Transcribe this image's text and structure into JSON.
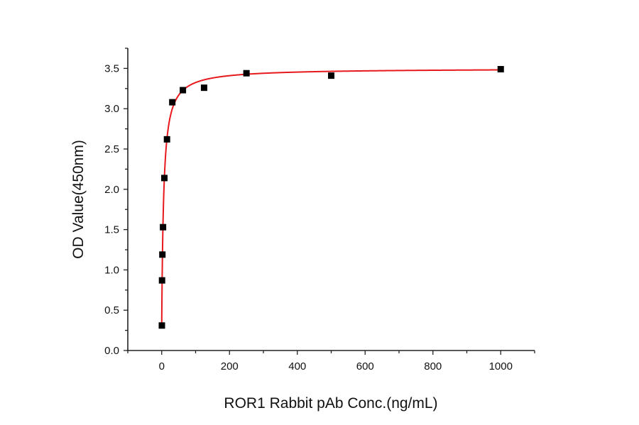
{
  "chart_data": {
    "type": "scatter",
    "title": "",
    "xlabel": "ROR1 Rabbit pAb Conc.(ng/mL)",
    "ylabel": "OD Value(450nm)",
    "xlim": [
      -100,
      1100
    ],
    "ylim": [
      0,
      3.75
    ],
    "xticks": [
      0,
      200,
      400,
      600,
      800,
      1000
    ],
    "xtick_labels": [
      "0",
      "200",
      "400",
      "600",
      "800",
      "1000"
    ],
    "yticks": [
      0,
      0.5,
      1.0,
      1.5,
      2.0,
      2.5,
      3.0,
      3.5
    ],
    "ytick_labels": [
      "0.0",
      "0.5",
      "1.0",
      "1.5",
      "2.0",
      "2.5",
      "3.0",
      "3.5"
    ],
    "grid": false,
    "legend": "none",
    "series": [
      {
        "marker": "square",
        "color": "#000000",
        "x": [
          0.49,
          0.98,
          1.95,
          3.9,
          7.8,
          15.6,
          31.25,
          62.5,
          125,
          250,
          500,
          1000
        ],
        "y": [
          0.31,
          0.87,
          1.19,
          1.53,
          2.14,
          2.62,
          3.08,
          3.23,
          3.26,
          3.44,
          3.41,
          3.49
        ]
      }
    ],
    "fit_curve": {
      "color": "#e8191c",
      "type": "saturation fit"
    }
  }
}
